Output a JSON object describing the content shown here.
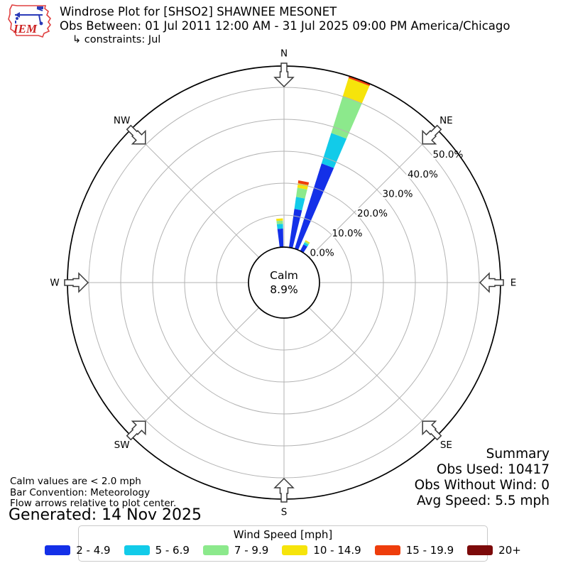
{
  "header": {
    "logo_text": "IEM",
    "logo_outline_color": "#e04040",
    "logo_vane_color": "#2a3ab8",
    "title": "Windrose Plot for [SHSO2] SHAWNEE MESONET",
    "obs_between": "Obs Between: 01 Jul 2011 12:00 AM - 31 Jul 2025 09:00 PM America/Chicago",
    "constraints": "↳ constraints: Jul"
  },
  "chart_data": {
    "type": "windrose",
    "units": "mph",
    "calm_label": "Calm",
    "calm_percent": "8.9%",
    "ring_percents": [
      0,
      10,
      20,
      30,
      40,
      50
    ],
    "ring_labels": [
      "0.0%",
      "10.0%",
      "20.0%",
      "30.0%",
      "40.0%",
      "50.0%"
    ],
    "compass_points": [
      "N",
      "NE",
      "E",
      "SE",
      "S",
      "SW",
      "W",
      "NW"
    ],
    "grid_color": "#b3b3b3",
    "speed_bins": [
      {
        "label": "2 - 4.9",
        "color": "#1430e8"
      },
      {
        "label": "5 - 6.9",
        "color": "#12cbe9"
      },
      {
        "label": "7 - 9.9",
        "color": "#8ce98c"
      },
      {
        "label": "10 - 14.9",
        "color": "#f6e40b"
      },
      {
        "label": "15 - 19.9",
        "color": "#ee3d0c"
      },
      {
        "label": "20+",
        "color": "#7c0a0a"
      }
    ],
    "petals": [
      {
        "direction_deg": 356,
        "values": [
          5.8,
          1.5,
          1.0,
          0.7,
          0,
          0
        ]
      },
      {
        "direction_deg": 11,
        "values": [
          12.2,
          3.8,
          2.9,
          1.4,
          0.9,
          0
        ]
      },
      {
        "direction_deg": 20.5,
        "values": [
          28.0,
          10.0,
          12.0,
          6.0,
          2.0,
          0
        ]
      },
      {
        "direction_deg": 30,
        "values": [
          2.3,
          0.7,
          0.45,
          0.35,
          0,
          0
        ]
      }
    ],
    "rmax_percent_visible": 56.7
  },
  "footnotes": {
    "calm_note": "Calm values are < 2.0 mph",
    "convention_note": "Bar Convention: Meteorology",
    "arrows_note": "Flow arrows relative to plot center.",
    "generated": "Generated: 14 Nov 2025"
  },
  "summary": {
    "title": "Summary",
    "obs_used": "Obs Used: 10417",
    "obs_without_wind": "Obs Without Wind: 0",
    "avg_speed": "Avg Speed: 5.5 mph"
  },
  "legend": {
    "title": "Wind Speed [mph]"
  }
}
